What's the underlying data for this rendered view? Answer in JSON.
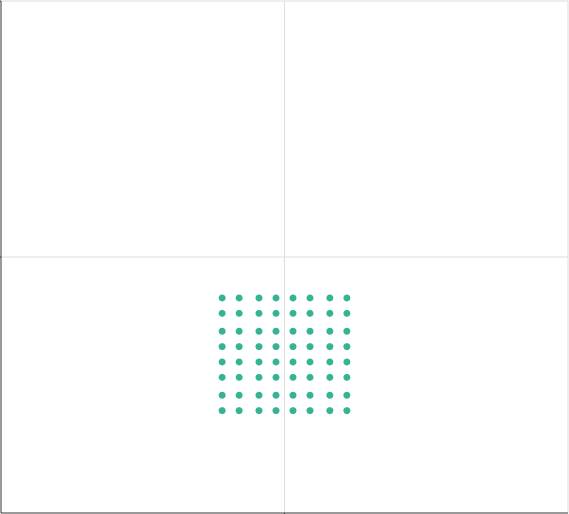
{
  "chart_data": {
    "type": "scatter",
    "x": [
      -0.22,
      -0.16,
      -0.09,
      -0.03,
      0.03,
      0.09,
      0.16,
      0.22,
      -0.22,
      -0.16,
      -0.09,
      -0.03,
      0.03,
      0.09,
      0.16,
      0.22,
      -0.22,
      -0.16,
      -0.09,
      -0.03,
      0.03,
      0.09,
      0.16,
      0.22,
      -0.22,
      -0.16,
      -0.09,
      -0.03,
      0.03,
      0.09,
      0.16,
      0.22,
      -0.22,
      -0.16,
      -0.09,
      -0.03,
      0.03,
      0.09,
      0.16,
      0.22,
      -0.22,
      -0.16,
      -0.09,
      -0.03,
      0.03,
      0.09,
      0.16,
      0.22,
      -0.22,
      -0.16,
      -0.09,
      -0.03,
      0.03,
      0.09,
      0.16,
      0.22,
      -0.22,
      -0.16,
      -0.09,
      -0.03,
      0.03,
      0.09,
      0.16,
      0.22
    ],
    "values": [
      -0.16,
      -0.16,
      -0.16,
      -0.16,
      -0.16,
      -0.16,
      -0.16,
      -0.16,
      -0.22,
      -0.22,
      -0.22,
      -0.22,
      -0.22,
      -0.22,
      -0.22,
      -0.22,
      -0.29,
      -0.29,
      -0.29,
      -0.29,
      -0.29,
      -0.29,
      -0.29,
      -0.29,
      -0.35,
      -0.35,
      -0.35,
      -0.35,
      -0.35,
      -0.35,
      -0.35,
      -0.35,
      -0.41,
      -0.41,
      -0.41,
      -0.41,
      -0.41,
      -0.41,
      -0.41,
      -0.41,
      -0.47,
      -0.47,
      -0.47,
      -0.47,
      -0.47,
      -0.47,
      -0.47,
      -0.47,
      -0.54,
      -0.54,
      -0.54,
      -0.54,
      -0.54,
      -0.54,
      -0.54,
      -0.54,
      -0.6,
      -0.6,
      -0.6,
      -0.6,
      -0.6,
      -0.6,
      -0.6,
      -0.6
    ],
    "color": "#36b394",
    "xlim": [
      -1,
      1
    ],
    "ylim": [
      -1,
      1
    ],
    "xticks": [
      0
    ],
    "yticks": [
      0,
      1
    ],
    "grid": true
  }
}
